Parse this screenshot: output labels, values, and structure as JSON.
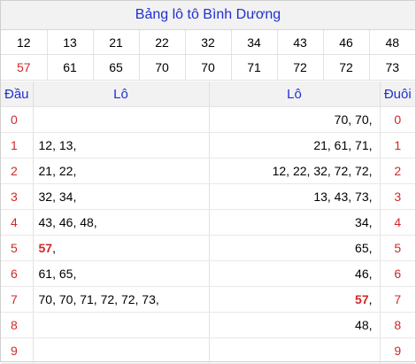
{
  "title": "Bảng lô tô Bình Dương",
  "numbers": {
    "row1": [
      {
        "v": "12",
        "red": false
      },
      {
        "v": "13",
        "red": false
      },
      {
        "v": "21",
        "red": false
      },
      {
        "v": "22",
        "red": false
      },
      {
        "v": "32",
        "red": false
      },
      {
        "v": "34",
        "red": false
      },
      {
        "v": "43",
        "red": false
      },
      {
        "v": "46",
        "red": false
      },
      {
        "v": "48",
        "red": false
      }
    ],
    "row2": [
      {
        "v": "57",
        "red": true
      },
      {
        "v": "61",
        "red": false
      },
      {
        "v": "65",
        "red": false
      },
      {
        "v": "70",
        "red": false
      },
      {
        "v": "70",
        "red": false
      },
      {
        "v": "71",
        "red": false
      },
      {
        "v": "72",
        "red": false
      },
      {
        "v": "72",
        "red": false
      },
      {
        "v": "73",
        "red": false
      }
    ]
  },
  "headers": {
    "dau": "Đầu",
    "lo_left": "Lô",
    "lo_right": "Lô",
    "duoi": "Đuôi"
  },
  "rows": [
    {
      "dau": "0",
      "lo1": [],
      "lo2": [
        {
          "v": "70",
          "hl": false
        },
        {
          "v": "70",
          "hl": false
        }
      ],
      "duoi": "0"
    },
    {
      "dau": "1",
      "lo1": [
        {
          "v": "12",
          "hl": false
        },
        {
          "v": "13",
          "hl": false
        }
      ],
      "lo2": [
        {
          "v": "21",
          "hl": false
        },
        {
          "v": "61",
          "hl": false
        },
        {
          "v": "71",
          "hl": false
        }
      ],
      "duoi": "1"
    },
    {
      "dau": "2",
      "lo1": [
        {
          "v": "21",
          "hl": false
        },
        {
          "v": "22",
          "hl": false
        }
      ],
      "lo2": [
        {
          "v": "12",
          "hl": false
        },
        {
          "v": "22",
          "hl": false
        },
        {
          "v": "32",
          "hl": false
        },
        {
          "v": "72",
          "hl": false
        },
        {
          "v": "72",
          "hl": false
        }
      ],
      "duoi": "2"
    },
    {
      "dau": "3",
      "lo1": [
        {
          "v": "32",
          "hl": false
        },
        {
          "v": "34",
          "hl": false
        }
      ],
      "lo2": [
        {
          "v": "13",
          "hl": false
        },
        {
          "v": "43",
          "hl": false
        },
        {
          "v": "73",
          "hl": false
        }
      ],
      "duoi": "3"
    },
    {
      "dau": "4",
      "lo1": [
        {
          "v": "43",
          "hl": false
        },
        {
          "v": "46",
          "hl": false
        },
        {
          "v": "48",
          "hl": false
        }
      ],
      "lo2": [
        {
          "v": "34",
          "hl": false
        }
      ],
      "duoi": "4"
    },
    {
      "dau": "5",
      "lo1": [
        {
          "v": "57",
          "hl": true
        }
      ],
      "lo2": [
        {
          "v": "65",
          "hl": false
        }
      ],
      "duoi": "5"
    },
    {
      "dau": "6",
      "lo1": [
        {
          "v": "61",
          "hl": false
        },
        {
          "v": "65",
          "hl": false
        }
      ],
      "lo2": [
        {
          "v": "46",
          "hl": false
        }
      ],
      "duoi": "6"
    },
    {
      "dau": "7",
      "lo1": [
        {
          "v": "70",
          "hl": false
        },
        {
          "v": "70",
          "hl": false
        },
        {
          "v": "71",
          "hl": false
        },
        {
          "v": "72",
          "hl": false
        },
        {
          "v": "72",
          "hl": false
        },
        {
          "v": "73",
          "hl": false
        }
      ],
      "lo2": [
        {
          "v": "57",
          "hl": true
        }
      ],
      "duoi": "7"
    },
    {
      "dau": "8",
      "lo1": [],
      "lo2": [
        {
          "v": "48",
          "hl": false
        }
      ],
      "duoi": "8"
    },
    {
      "dau": "9",
      "lo1": [],
      "lo2": [],
      "duoi": "9"
    }
  ],
  "colors": {
    "title_blue": "#1f2fd0",
    "red": "#d12828",
    "header_bg": "#f2f2f2"
  }
}
